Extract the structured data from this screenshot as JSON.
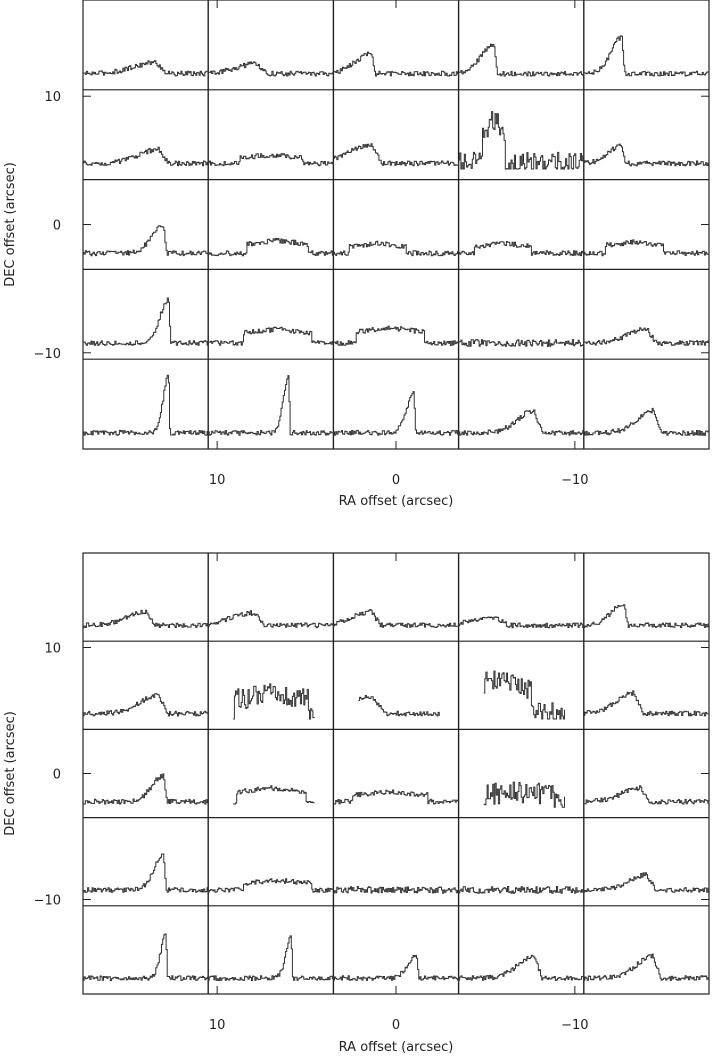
{
  "chart_data": [
    {
      "type": "line",
      "xlabel": "RA offset (arcsec)",
      "ylabel": "DEC offset (arcsec)",
      "xlim": [
        17.5,
        -17.5
      ],
      "ylim": [
        -17.5,
        17.5
      ],
      "xticks": [
        {
          "value": 10,
          "label": "10"
        },
        {
          "value": 0,
          "label": "0"
        },
        {
          "value": -10,
          "label": "−10"
        }
      ],
      "yticks": [
        {
          "value": 10,
          "label": "10"
        },
        {
          "value": 0,
          "label": "0"
        },
        {
          "value": -10,
          "label": "−10"
        }
      ],
      "grid": {
        "columns": 5,
        "rows": 5,
        "cell_arcsec": 7
      },
      "spectra": [
        [
          {
            "peak": 0.16,
            "width": 0.36,
            "center": 0.58,
            "shape": "wing"
          },
          {
            "peak": 0.14,
            "width": 0.32,
            "center": 0.38,
            "shape": "wing"
          },
          {
            "peak": 0.28,
            "width": 0.3,
            "center": 0.3,
            "shape": "sharp"
          },
          {
            "peak": 0.42,
            "width": 0.24,
            "center": 0.28,
            "shape": "sharp"
          },
          {
            "peak": 0.52,
            "width": 0.2,
            "center": 0.3,
            "shape": "sharp"
          }
        ],
        [
          {
            "peak": 0.2,
            "width": 0.32,
            "center": 0.6,
            "shape": "wing"
          },
          {
            "peak": 0.12,
            "width": 0.5,
            "center": 0.5,
            "shape": "flat"
          },
          {
            "peak": 0.26,
            "width": 0.36,
            "center": 0.3,
            "shape": "wing"
          },
          {
            "peak": 0.62,
            "width": 0.18,
            "center": 0.28,
            "shape": "noisy"
          },
          {
            "peak": 0.26,
            "width": 0.24,
            "center": 0.3,
            "shape": "sharp"
          }
        ],
        [
          {
            "peak": 0.4,
            "width": 0.22,
            "center": 0.64,
            "shape": "sharp"
          },
          {
            "peak": 0.18,
            "width": 0.5,
            "center": 0.55,
            "shape": "flat"
          },
          {
            "peak": 0.14,
            "width": 0.46,
            "center": 0.35,
            "shape": "flat"
          },
          {
            "peak": 0.14,
            "width": 0.46,
            "center": 0.35,
            "shape": "flat"
          },
          {
            "peak": 0.16,
            "width": 0.46,
            "center": 0.4,
            "shape": "flat"
          }
        ],
        [
          {
            "peak": 0.62,
            "width": 0.16,
            "center": 0.68,
            "shape": "sharp"
          },
          {
            "peak": 0.2,
            "width": 0.55,
            "center": 0.55,
            "shape": "flat"
          },
          {
            "peak": 0.22,
            "width": 0.55,
            "center": 0.45,
            "shape": "flat"
          },
          {
            "peak": 0.08,
            "width": 0.5,
            "center": 0.5,
            "shape": "noise"
          },
          {
            "peak": 0.2,
            "width": 0.3,
            "center": 0.5,
            "shape": "wing"
          }
        ],
        [
          {
            "peak": 0.82,
            "width": 0.1,
            "center": 0.68,
            "shape": "sharp"
          },
          {
            "peak": 0.82,
            "width": 0.1,
            "center": 0.64,
            "shape": "sharp"
          },
          {
            "peak": 0.56,
            "width": 0.14,
            "center": 0.64,
            "shape": "sharp"
          },
          {
            "peak": 0.32,
            "width": 0.26,
            "center": 0.6,
            "shape": "wing"
          },
          {
            "peak": 0.32,
            "width": 0.26,
            "center": 0.55,
            "shape": "wing"
          }
        ]
      ]
    },
    {
      "type": "line",
      "xlabel": "RA offset (arcsec)",
      "ylabel": "DEC offset (arcsec)",
      "xlim": [
        17.5,
        -17.5
      ],
      "ylim": [
        -17.5,
        17.5
      ],
      "xticks": [
        {
          "value": 10,
          "label": "10"
        },
        {
          "value": 0,
          "label": "0"
        },
        {
          "value": -10,
          "label": "−10"
        }
      ],
      "yticks": [
        {
          "value": 10,
          "label": "10"
        },
        {
          "value": 0,
          "label": "0"
        },
        {
          "value": -10,
          "label": "−10"
        }
      ],
      "grid": {
        "columns": 5,
        "rows": 5,
        "cell_arcsec": 7
      },
      "spectra": [
        [
          {
            "peak": 0.2,
            "width": 0.3,
            "center": 0.5,
            "shape": "wing"
          },
          {
            "peak": 0.18,
            "width": 0.36,
            "center": 0.36,
            "shape": "wing"
          },
          {
            "peak": 0.2,
            "width": 0.3,
            "center": 0.3,
            "shape": "wing"
          },
          {
            "peak": 0.12,
            "width": 0.36,
            "center": 0.3,
            "shape": "wing"
          },
          {
            "peak": 0.32,
            "width": 0.24,
            "center": 0.32,
            "shape": "sharp"
          }
        ],
        [
          {
            "peak": 0.26,
            "width": 0.3,
            "center": 0.6,
            "shape": "wing"
          },
          {
            "peak": 0.28,
            "width": 0.6,
            "center": 0.5,
            "shape": "noisy",
            "span": [
              0.2,
              0.85
            ]
          },
          {
            "peak": 0.24,
            "width": 0.5,
            "center": 0.3,
            "shape": "wing",
            "span": [
              0.2,
              0.85
            ]
          },
          {
            "peak": 0.5,
            "width": 0.55,
            "center": 0.3,
            "shape": "noisy",
            "span": [
              0.2,
              0.85
            ]
          },
          {
            "peak": 0.3,
            "width": 0.28,
            "center": 0.4,
            "shape": "wing"
          }
        ],
        [
          {
            "peak": 0.38,
            "width": 0.22,
            "center": 0.64,
            "shape": "sharp"
          },
          {
            "peak": 0.2,
            "width": 0.55,
            "center": 0.5,
            "shape": "flat",
            "span": [
              0.2,
              0.85
            ]
          },
          {
            "peak": 0.14,
            "width": 0.6,
            "center": 0.45,
            "shape": "flat"
          },
          {
            "peak": 0.14,
            "width": 0.6,
            "center": 0.45,
            "shape": "noisy",
            "span": [
              0.2,
              0.85
            ]
          },
          {
            "peak": 0.2,
            "width": 0.3,
            "center": 0.45,
            "shape": "wing"
          }
        ],
        [
          {
            "peak": 0.5,
            "width": 0.18,
            "center": 0.64,
            "shape": "sharp"
          },
          {
            "peak": 0.14,
            "width": 0.55,
            "center": 0.55,
            "shape": "flat"
          },
          {
            "peak": 0.1,
            "width": 0.6,
            "center": 0.5,
            "shape": "noise"
          },
          {
            "peak": 0.08,
            "width": 0.5,
            "center": 0.5,
            "shape": "noise"
          },
          {
            "peak": 0.22,
            "width": 0.28,
            "center": 0.5,
            "shape": "wing"
          }
        ],
        [
          {
            "peak": 0.64,
            "width": 0.1,
            "center": 0.66,
            "shape": "sharp"
          },
          {
            "peak": 0.62,
            "width": 0.1,
            "center": 0.66,
            "shape": "sharp"
          },
          {
            "peak": 0.34,
            "width": 0.16,
            "center": 0.66,
            "shape": "sharp"
          },
          {
            "peak": 0.32,
            "width": 0.26,
            "center": 0.6,
            "shape": "wing"
          },
          {
            "peak": 0.32,
            "width": 0.26,
            "center": 0.55,
            "shape": "wing"
          }
        ]
      ]
    }
  ]
}
